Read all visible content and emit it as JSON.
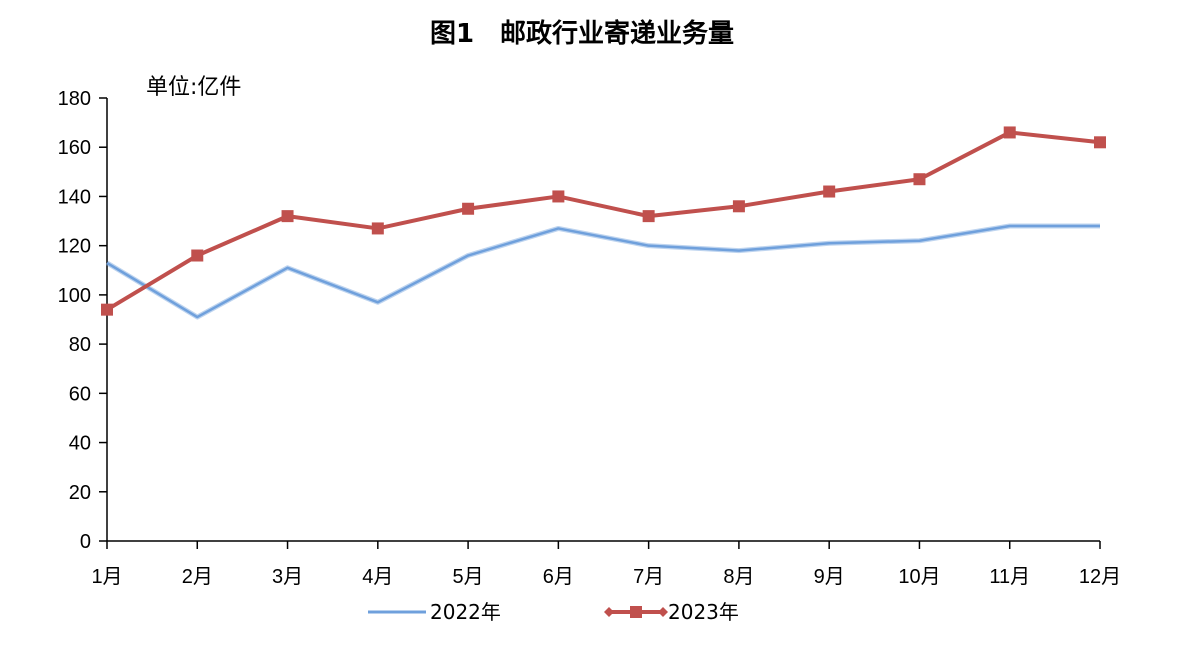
{
  "chart_data": {
    "type": "line",
    "title": "图1　邮政行业寄递业务量",
    "unit_label": "单位:亿件",
    "categories": [
      "1月",
      "2月",
      "3月",
      "4月",
      "5月",
      "6月",
      "7月",
      "8月",
      "9月",
      "10月",
      "11月",
      "12月"
    ],
    "ylim": [
      0,
      180
    ],
    "yticks": [
      0,
      20,
      40,
      60,
      80,
      100,
      120,
      140,
      160,
      180
    ],
    "grid": false,
    "legend_position": "bottom",
    "series": [
      {
        "name": "2022年",
        "color": "#6FA0DC",
        "marker": "none",
        "values": [
          113,
          91,
          111,
          97,
          116,
          127,
          120,
          118,
          121,
          122,
          128,
          128
        ]
      },
      {
        "name": "2023年",
        "color": "#C0504D",
        "marker": "square",
        "values": [
          94,
          116,
          132,
          127,
          135,
          140,
          132,
          136,
          142,
          147,
          166,
          162
        ]
      }
    ]
  }
}
